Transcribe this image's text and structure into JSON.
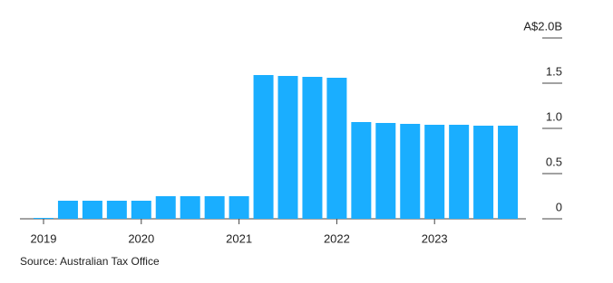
{
  "chart_data": {
    "type": "bar",
    "source": "Source: Australian Tax Office",
    "categories": [
      "2019",
      null,
      null,
      null,
      "2020",
      null,
      null,
      null,
      "2021",
      null,
      null,
      null,
      "2022",
      null,
      null,
      null,
      "2023",
      null,
      null,
      null
    ],
    "values": [
      0.01,
      0.2,
      0.2,
      0.2,
      0.2,
      0.25,
      0.25,
      0.25,
      0.25,
      1.59,
      1.58,
      1.57,
      1.56,
      1.07,
      1.06,
      1.05,
      1.04,
      1.04,
      1.03,
      1.03
    ],
    "color": "#1aaeff",
    "ylim": [
      0,
      2.0
    ],
    "yticks": [
      0,
      0.5,
      {
        "value": 1.0,
        "label": "1.0"
      },
      1.5,
      {
        "value": 2.0,
        "label": "A$2.0B"
      }
    ]
  }
}
